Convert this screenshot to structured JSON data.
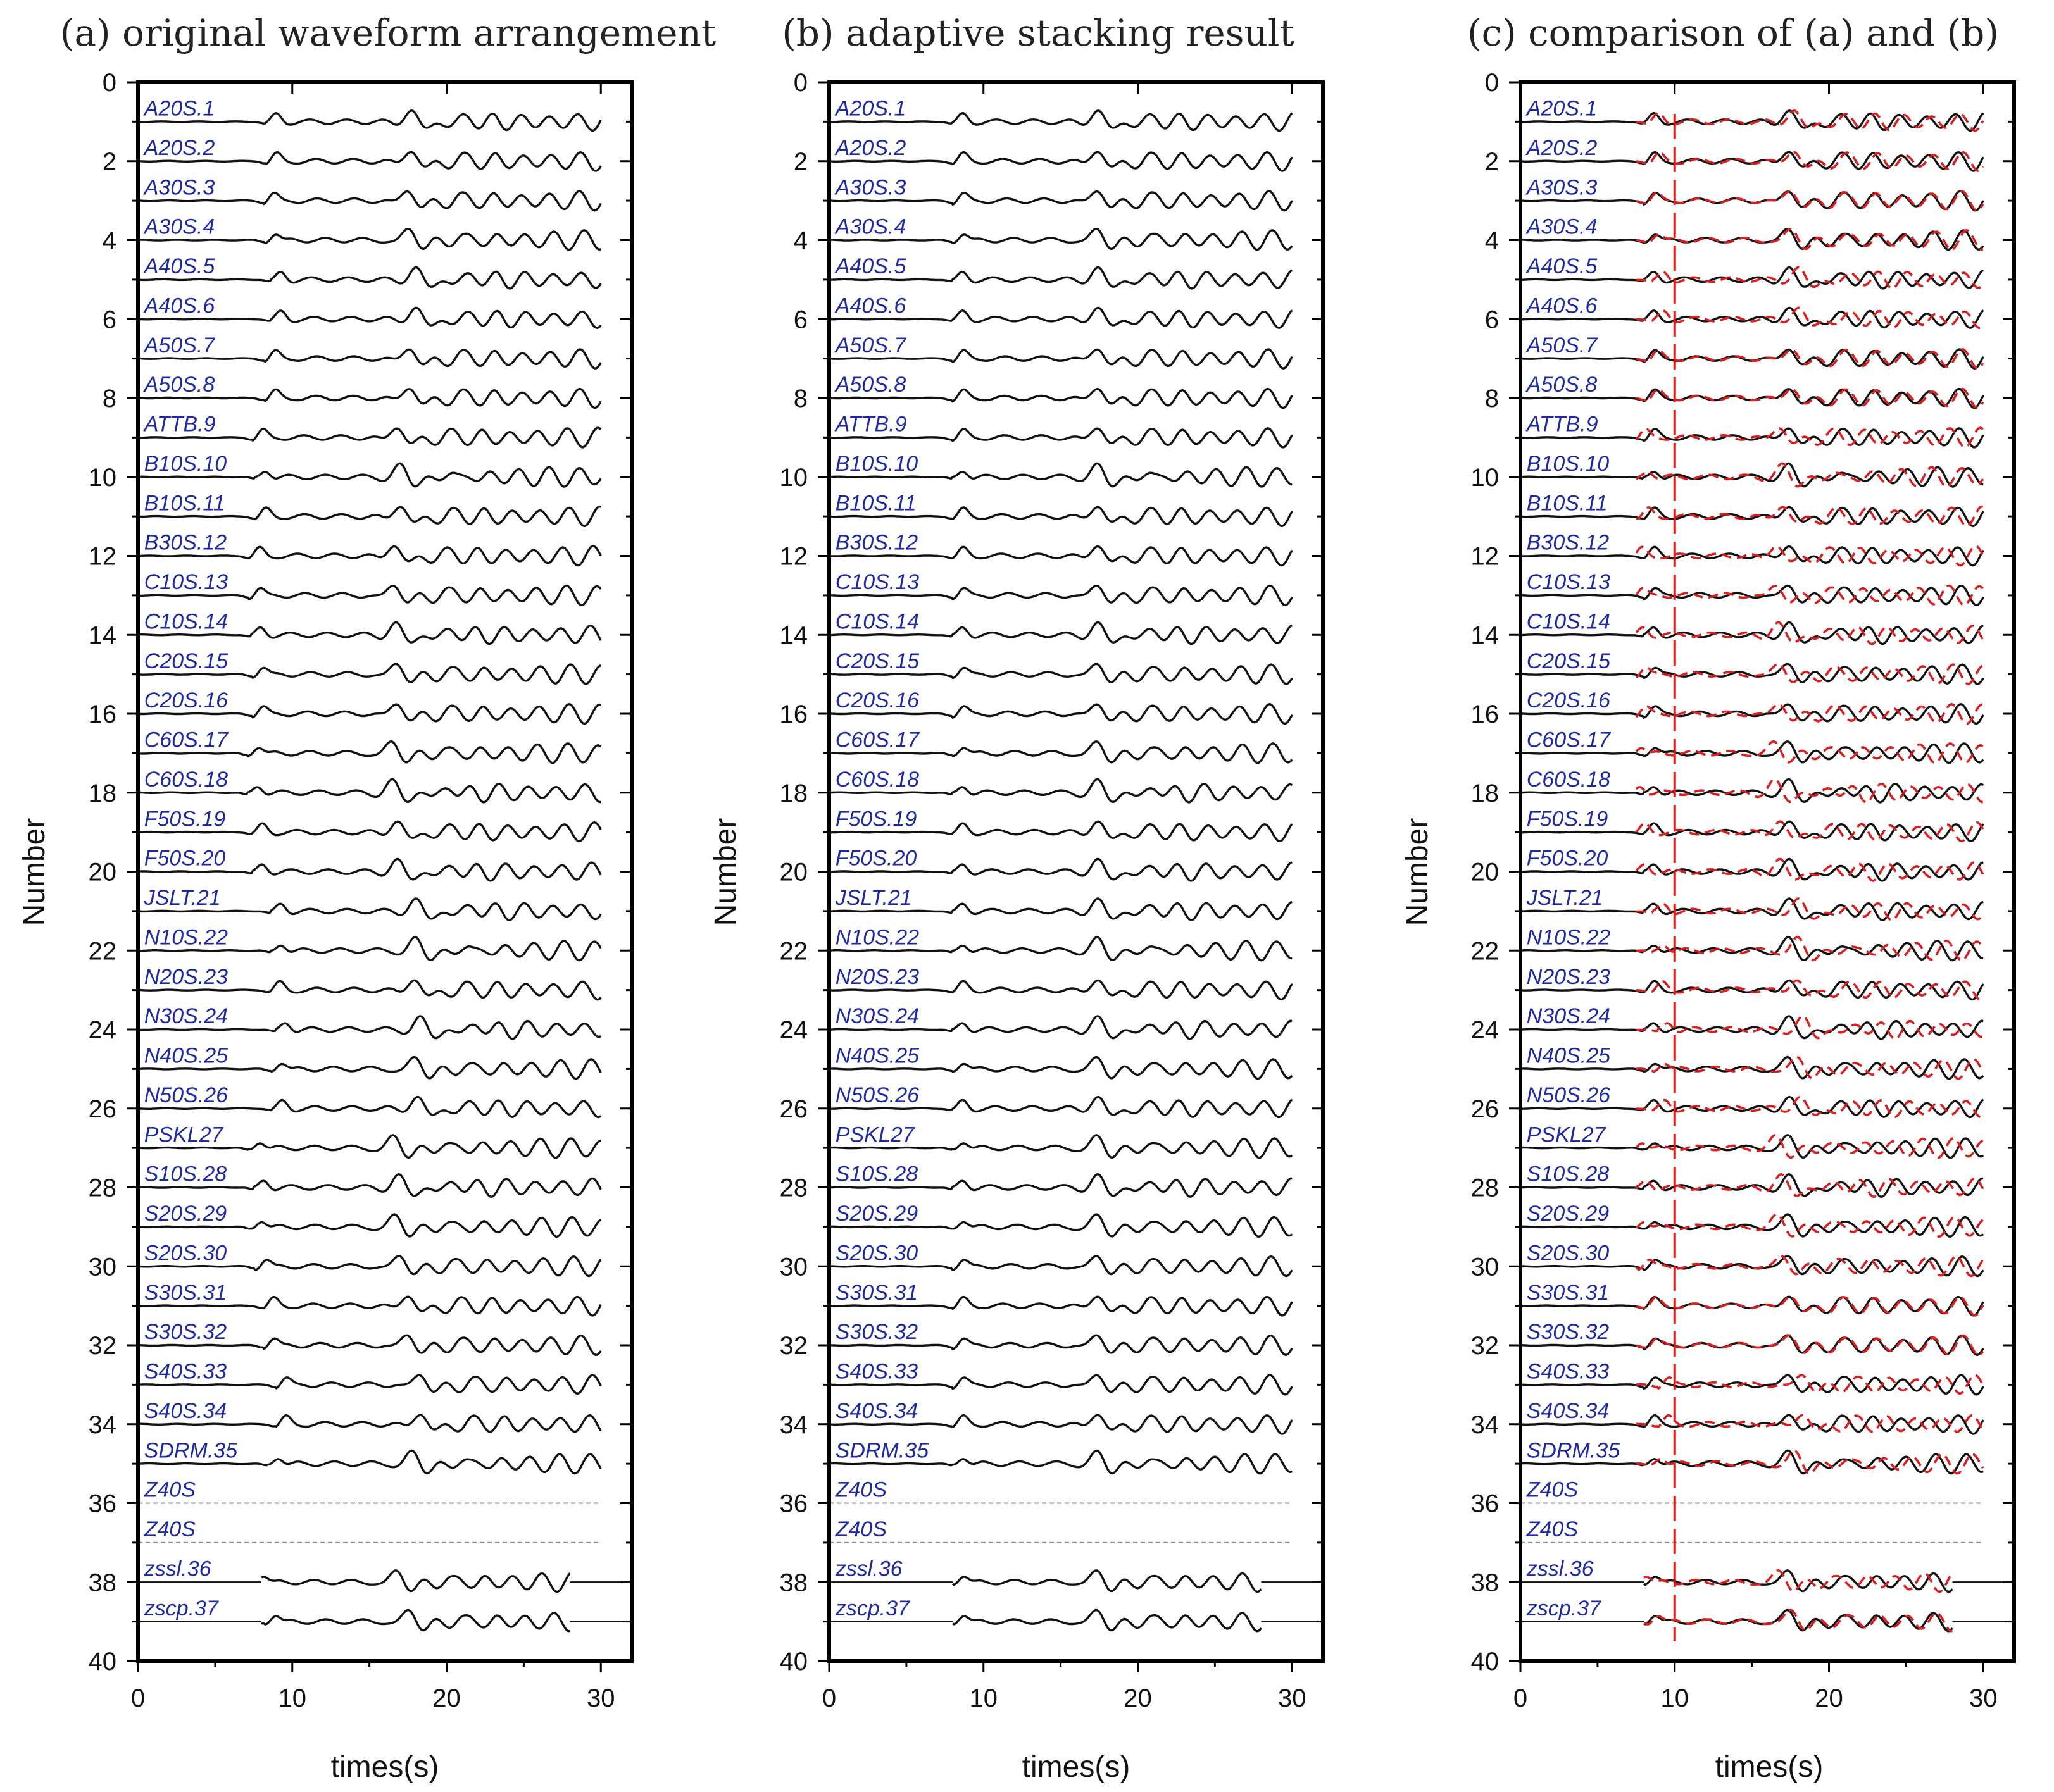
{
  "chart_data": [
    {
      "panel": "a",
      "type": "line",
      "title": "(a) original waveform arrangement",
      "xlabel": "times(s)",
      "ylabel": "Number",
      "xlim": [
        0,
        32
      ],
      "ylim": [
        40,
        0
      ],
      "xticks": [
        0,
        10,
        20,
        30
      ],
      "yticks": [
        0,
        2,
        4,
        6,
        8,
        10,
        12,
        14,
        16,
        18,
        20,
        22,
        24,
        26,
        28,
        30,
        32,
        34,
        36,
        38,
        40
      ],
      "mode": "original",
      "traces_end_s": 30
    },
    {
      "panel": "b",
      "type": "line",
      "title": "(b) adaptive stacking result",
      "xlabel": "times(s)",
      "ylabel": "Number",
      "xlim": [
        0,
        32
      ],
      "ylim": [
        40,
        0
      ],
      "xticks": [
        0,
        10,
        20,
        30
      ],
      "yticks": [
        0,
        2,
        4,
        6,
        8,
        10,
        12,
        14,
        16,
        18,
        20,
        22,
        24,
        26,
        28,
        30,
        32,
        34,
        36,
        38,
        40
      ],
      "mode": "aligned",
      "traces_end_s": 30
    },
    {
      "panel": "c",
      "type": "line",
      "title": "(c) comparison of (a) and (b)",
      "xlabel": "times(s)",
      "ylabel": "Number",
      "xlim": [
        0,
        32
      ],
      "ylim": [
        40,
        0
      ],
      "xticks": [
        0,
        10,
        20,
        30
      ],
      "yticks": [
        0,
        2,
        4,
        6,
        8,
        10,
        12,
        14,
        16,
        18,
        20,
        22,
        24,
        26,
        28,
        30,
        32,
        34,
        36,
        38,
        40
      ],
      "mode": "comparison",
      "traces_end_s": 30,
      "pick_line_s": 10,
      "series_styles": {
        "stacked": "black solid",
        "original": "red dashed"
      }
    }
  ],
  "stations": [
    {
      "label": "A20S.1",
      "row": 1,
      "shift": 0.3
    },
    {
      "label": "A20S.2",
      "row": 2,
      "shift": 0.3
    },
    {
      "label": "A30S.3",
      "row": 3,
      "shift": 0.1
    },
    {
      "label": "A30S.4",
      "row": 4,
      "shift": 0.2
    },
    {
      "label": "A40S.5",
      "row": 5,
      "shift": 0.6
    },
    {
      "label": "A40S.6",
      "row": 6,
      "shift": 0.6
    },
    {
      "label": "A50S.7",
      "row": 7,
      "shift": 0.2
    },
    {
      "label": "A50S.8",
      "row": 8,
      "shift": 0.2
    },
    {
      "label": "ATTB.9",
      "row": 9,
      "shift": -0.6
    },
    {
      "label": "B10S.10",
      "row": 10,
      "shift": -0.4
    },
    {
      "label": "B10S.11",
      "row": 11,
      "shift": -0.4
    },
    {
      "label": "B30S.12",
      "row": 12,
      "shift": -0.8
    },
    {
      "label": "C10S.13",
      "row": 13,
      "shift": -0.8
    },
    {
      "label": "C10S.14",
      "row": 14,
      "shift": -0.7
    },
    {
      "label": "C20S.15",
      "row": 15,
      "shift": -0.6
    },
    {
      "label": "C20S.16",
      "row": 16,
      "shift": -0.6
    },
    {
      "label": "C60S.17",
      "row": 17,
      "shift": -0.9
    },
    {
      "label": "C60S.18",
      "row": 18,
      "shift": -0.9
    },
    {
      "label": "F50S.19",
      "row": 19,
      "shift": -0.6
    },
    {
      "label": "F50S.20",
      "row": 20,
      "shift": -0.6
    },
    {
      "label": "JSLT.21",
      "row": 21,
      "shift": 0.6
    },
    {
      "label": "N10S.22",
      "row": 22,
      "shift": 0.6
    },
    {
      "label": "N20S.23",
      "row": 23,
      "shift": 0.5
    },
    {
      "label": "N30S.24",
      "row": 24,
      "shift": 0.9
    },
    {
      "label": "N40S.25",
      "row": 25,
      "shift": 0.6
    },
    {
      "label": "N50S.26",
      "row": 26,
      "shift": 0.7
    },
    {
      "label": "PSKL27",
      "row": 27,
      "shift": -0.8
    },
    {
      "label": "S10S.28",
      "row": 28,
      "shift": -0.5
    },
    {
      "label": "S20S.29",
      "row": 29,
      "shift": -0.7
    },
    {
      "label": "S20S.30",
      "row": 30,
      "shift": -0.4
    },
    {
      "label": "S30S.31",
      "row": 31,
      "shift": 0.1
    },
    {
      "label": "S30S.32",
      "row": 32,
      "shift": 0.1
    },
    {
      "label": "S40S.33",
      "row": 33,
      "shift": 0.9
    },
    {
      "label": "S40S.34",
      "row": 34,
      "shift": 0.9
    },
    {
      "label": "SDRM.35",
      "row": 35,
      "shift": 0.4
    },
    {
      "label": "Z40S",
      "row": 36,
      "empty": true
    },
    {
      "label": "Z40S",
      "row": 37,
      "empty": true
    },
    {
      "label": "zssl.36",
      "row": 38,
      "shift": -0.6,
      "end": 28
    },
    {
      "label": "zscp.37",
      "row": 39,
      "shift": 0.2,
      "end": 28
    }
  ]
}
